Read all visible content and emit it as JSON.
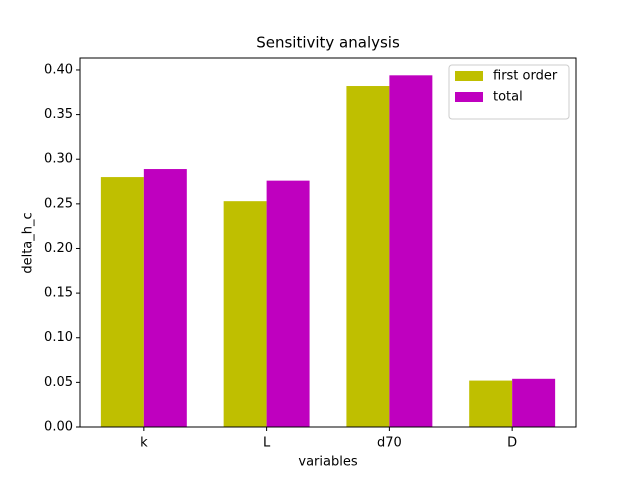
{
  "chart_data": {
    "type": "bar",
    "title": "Sensitivity analysis",
    "x_label": "variables",
    "y_label": "delta_h_c",
    "categories": [
      "k",
      "L",
      "d70",
      "D"
    ],
    "series": [
      {
        "name": "first order",
        "color": "#bfbf00",
        "values": [
          0.28,
          0.253,
          0.382,
          0.052
        ]
      },
      {
        "name": "total",
        "color": "#bf00bf",
        "values": [
          0.289,
          0.276,
          0.394,
          0.054
        ]
      }
    ],
    "ylim": [
      0,
      0.4134
    ],
    "yticks": [
      {
        "value": 0,
        "label": "0.00"
      },
      {
        "value": 0.05,
        "label": "0.05"
      },
      {
        "value": 0.1,
        "label": "0.10"
      },
      {
        "value": 0.15,
        "label": "0.15"
      },
      {
        "value": 0.2,
        "label": "0.20"
      },
      {
        "value": 0.25,
        "label": "0.25"
      },
      {
        "value": 0.3,
        "label": "0.30"
      },
      {
        "value": 0.35,
        "label": "0.35"
      },
      {
        "value": 0.4,
        "label": "0.40"
      }
    ],
    "legend": "upper right",
    "grid": false
  }
}
